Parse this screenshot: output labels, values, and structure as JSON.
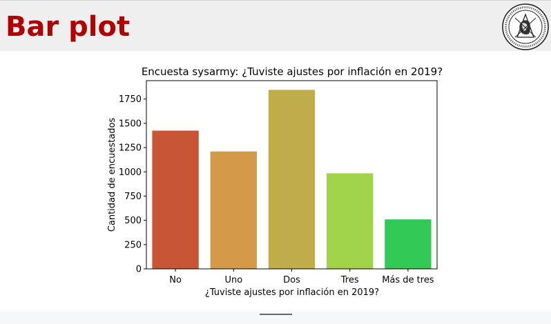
{
  "slide": {
    "title": "Bar plot"
  },
  "logo": {
    "name": "university-seal"
  },
  "chart_data": {
    "type": "bar",
    "title": "Encuesta sysarmy: ¿Tuviste ajustes por inflación en 2019?",
    "xlabel": "¿Tuviste ajustes por inflación en 2019?",
    "ylabel": "Cantidad de encuestados",
    "categories": [
      "No",
      "Uno",
      "Dos",
      "Tres",
      "Más de tres"
    ],
    "values": [
      1425,
      1210,
      1845,
      985,
      510
    ],
    "colors": [
      "#c85535",
      "#d49a4a",
      "#bfad4a",
      "#a0d24a",
      "#33c955"
    ],
    "ylim": [
      0,
      1940
    ],
    "yticks": [
      0,
      250,
      500,
      750,
      1000,
      1250,
      1500,
      1750
    ],
    "grid": false
  }
}
